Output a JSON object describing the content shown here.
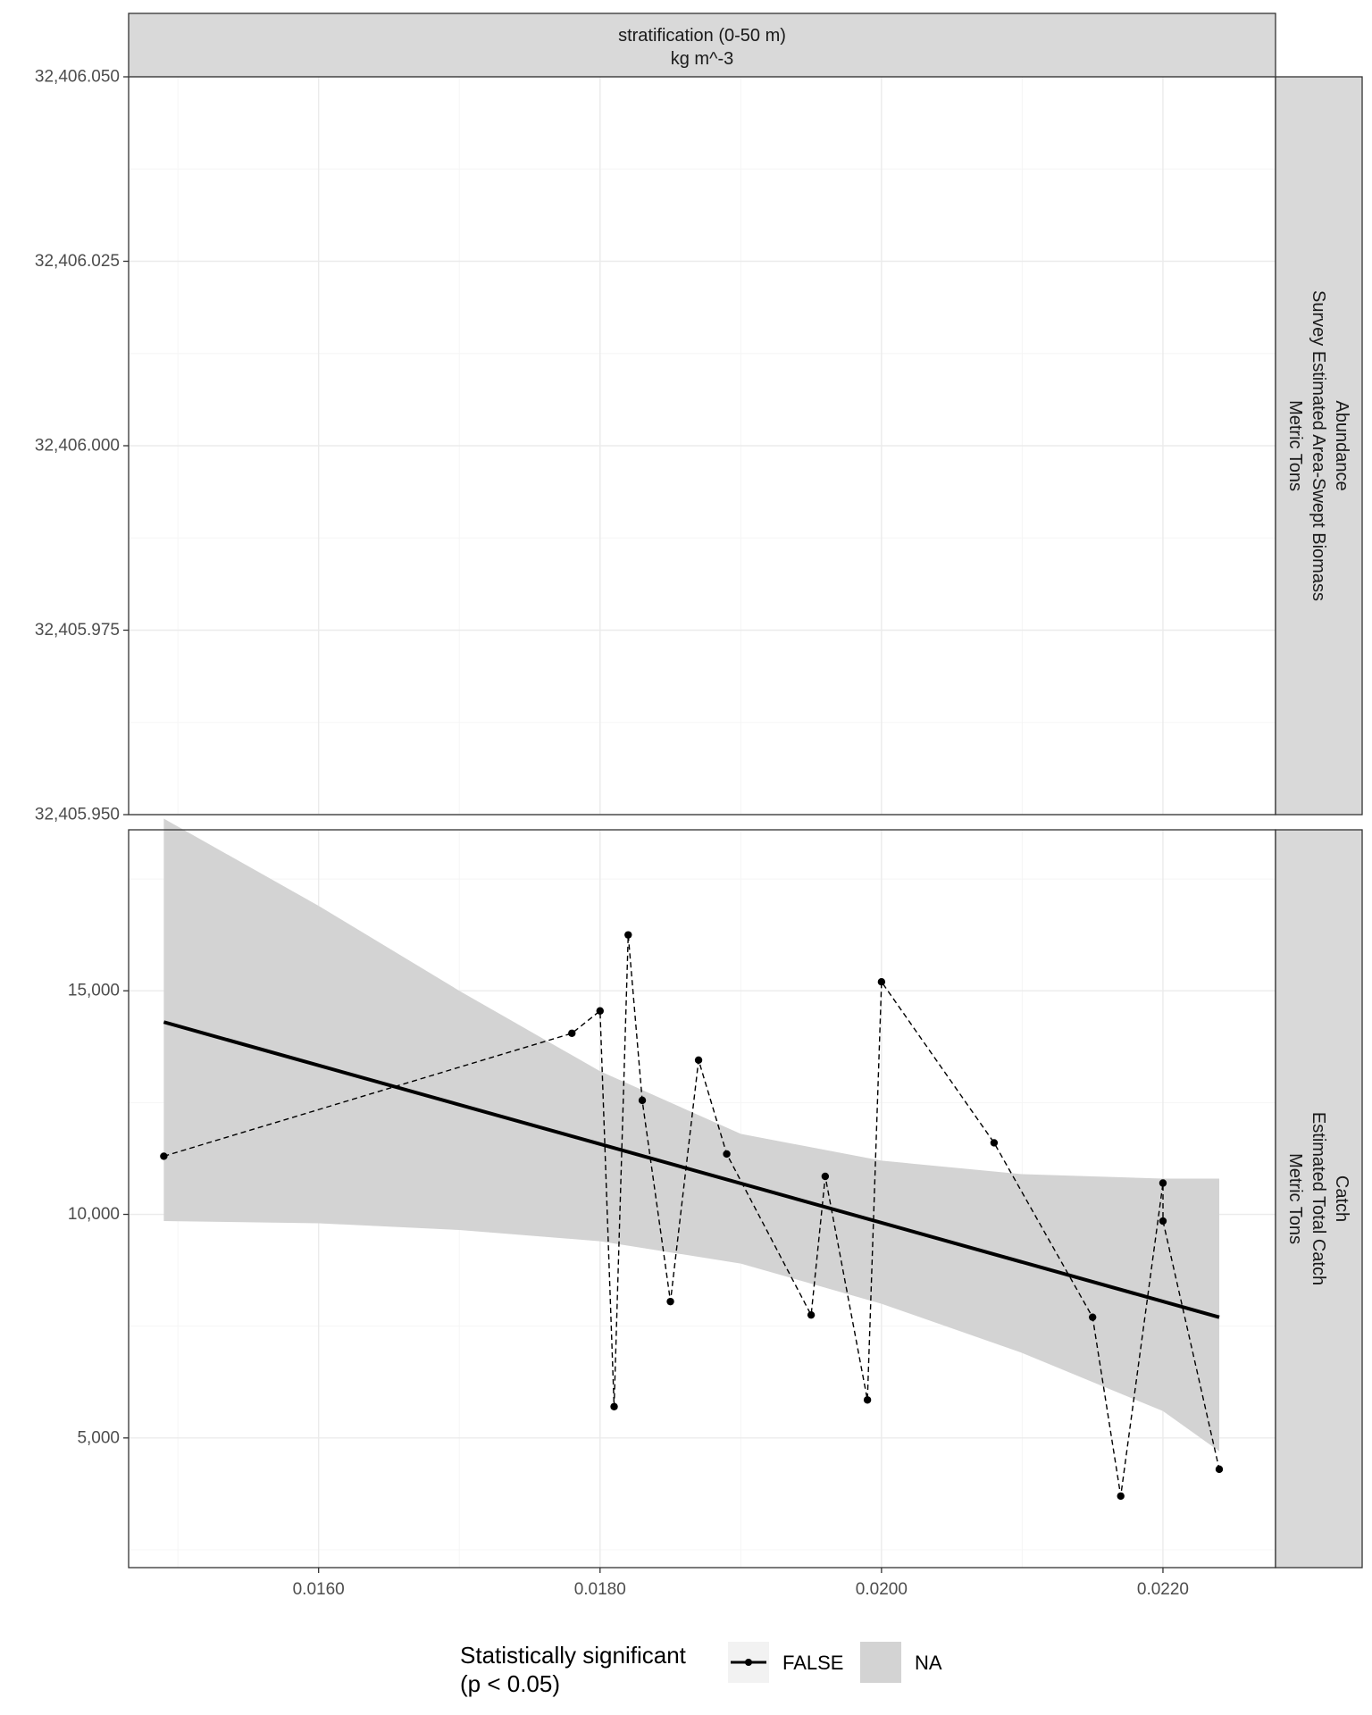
{
  "chart_data": {
    "type": "line",
    "facet_column_label": [
      "stratification (0-50 m)",
      "kg m^-3"
    ],
    "panels": [
      {
        "id": "abundance",
        "strip_label": [
          "Abundance",
          "Survey Estimated Area-Swept Biomass",
          "Metric Tons"
        ],
        "ylim": [
          32405.95,
          32406.05
        ],
        "y_ticks": [
          32405.95,
          32405.975,
          32406.0,
          32406.025,
          32406.05
        ],
        "y_tick_labels": [
          "32,405.950",
          "32,405.975",
          "32,406.000",
          "32,406.025",
          "32,406.050"
        ],
        "points": []
      },
      {
        "id": "catch",
        "strip_label": [
          "Catch",
          "Estimated Total Catch",
          "Metric Tons"
        ],
        "ylim": [
          2100,
          18600
        ],
        "y_ticks": [
          5000,
          10000,
          15000
        ],
        "y_tick_labels": [
          "5,000",
          "10,000",
          "15,000"
        ],
        "points": [
          {
            "x": 0.0149,
            "y": 11300
          },
          {
            "x": 0.0178,
            "y": 14050
          },
          {
            "x": 0.018,
            "y": 14550
          },
          {
            "x": 0.0181,
            "y": 5700
          },
          {
            "x": 0.0182,
            "y": 16250
          },
          {
            "x": 0.0183,
            "y": 12550
          },
          {
            "x": 0.0185,
            "y": 8050
          },
          {
            "x": 0.0187,
            "y": 13450
          },
          {
            "x": 0.0189,
            "y": 11350
          },
          {
            "x": 0.0195,
            "y": 7750
          },
          {
            "x": 0.0196,
            "y": 10850
          },
          {
            "x": 0.0199,
            "y": 5850
          },
          {
            "x": 0.02,
            "y": 15200
          },
          {
            "x": 0.0208,
            "y": 11600
          },
          {
            "x": 0.0215,
            "y": 7700
          },
          {
            "x": 0.0217,
            "y": 3700
          },
          {
            "x": 0.022,
            "y": 10700
          },
          {
            "x": 0.022,
            "y": 9850
          },
          {
            "x": 0.0224,
            "y": 4300
          }
        ],
        "trend": {
          "x": [
            0.0149,
            0.0224
          ],
          "y": [
            14300,
            7700
          ]
        },
        "ribbon": {
          "x": [
            0.0149,
            0.016,
            0.017,
            0.018,
            0.019,
            0.02,
            0.021,
            0.022,
            0.0224
          ],
          "lower": [
            9850,
            9800,
            9650,
            9400,
            8900,
            8000,
            6900,
            5600,
            4700
          ],
          "upper": [
            18850,
            16900,
            15000,
            13200,
            11800,
            11200,
            10900,
            10800,
            10800
          ]
        }
      }
    ],
    "xlim": [
      0.01465,
      0.0228
    ],
    "x_ticks": [
      0.016,
      0.018,
      0.02,
      0.022
    ],
    "x_tick_labels": [
      "0.0160",
      "0.0180",
      "0.0200",
      "0.0220"
    ],
    "grid": true,
    "legend": {
      "position": "bottom",
      "title": [
        "Statistically significant",
        "(p < 0.05)"
      ],
      "items": [
        {
          "key": "line",
          "label": "FALSE"
        },
        {
          "key": "fill",
          "label": "NA"
        }
      ]
    },
    "colors": {
      "strip_bg": "#d9d9d9",
      "ribbon": "#d3d3d3",
      "grid_major": "#ebebeb",
      "grid_minor": "#f5f5f5",
      "line": "#000000",
      "tick_text": "#4d4d4d"
    }
  }
}
